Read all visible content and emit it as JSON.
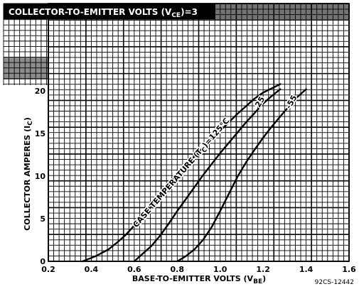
{
  "header": {
    "title": "COLLECTOR-TO-EMITTER VOLTS (V",
    "title_sub": "CE",
    "title_tail": ")=3"
  },
  "figure_code": "92CS-12442",
  "chart_data": {
    "type": "line",
    "xlabel": "BASE-TO-EMITTER VOLTS (V",
    "xlabel_sub": "BE",
    "xlabel_tail": ")",
    "ylabel": "COLLECTOR AMPERES (I",
    "ylabel_sub": "C",
    "ylabel_tail": ")",
    "xlim": [
      0.2,
      1.6
    ],
    "ylim": [
      0,
      20
    ],
    "xticks": [
      "0.2",
      "0.4",
      "0.6",
      "0.8",
      "1.0",
      "1.2",
      "1.4",
      "1.6"
    ],
    "yticks": [
      "0",
      "5",
      "10",
      "15",
      "20"
    ],
    "grid": true,
    "curve_label_prefix": "CASE TEMPERATURE (T",
    "curve_label_sub": "C",
    "curve_label_tail": ")=125°C",
    "series": [
      {
        "name": "125°C",
        "label": "CASE TEMPERATURE (TC)=125°C",
        "x": [
          0.36,
          0.42,
          0.48,
          0.52,
          0.56,
          0.6,
          0.64,
          0.68,
          0.72,
          0.76,
          0.8,
          0.84,
          0.88,
          0.92,
          0.96,
          1.0,
          1.04,
          1.08,
          1.12,
          1.16,
          1.2,
          1.24,
          1.28
        ],
        "y": [
          0,
          0.6,
          1.4,
          2.2,
          3.1,
          4.2,
          5.4,
          6.6,
          7.8,
          9.0,
          10.2,
          11.3,
          12.3,
          13.3,
          14.3,
          15.3,
          16.3,
          17.3,
          18.2,
          19.1,
          19.8,
          20.3,
          20.8
        ]
      },
      {
        "name": "25",
        "label": "25",
        "x": [
          0.6,
          0.64,
          0.68,
          0.72,
          0.76,
          0.8,
          0.84,
          0.88,
          0.92,
          0.96,
          1.0,
          1.04,
          1.08,
          1.12,
          1.16,
          1.2,
          1.24,
          1.28
        ],
        "y": [
          0,
          0.9,
          1.8,
          3.0,
          4.4,
          5.9,
          7.3,
          8.7,
          10.1,
          11.4,
          12.7,
          13.9,
          15.1,
          16.3,
          17.4,
          18.5,
          19.4,
          20.2
        ]
      },
      {
        "name": "-55",
        "label": "-55",
        "x": [
          0.8,
          0.84,
          0.88,
          0.92,
          0.96,
          1.0,
          1.04,
          1.08,
          1.12,
          1.16,
          1.2,
          1.24,
          1.28,
          1.32,
          1.36,
          1.4
        ],
        "y": [
          0,
          0.6,
          1.4,
          2.5,
          4.0,
          5.9,
          7.9,
          9.9,
          11.6,
          13.1,
          14.5,
          15.8,
          17.0,
          18.2,
          19.3,
          20.2
        ]
      }
    ]
  }
}
